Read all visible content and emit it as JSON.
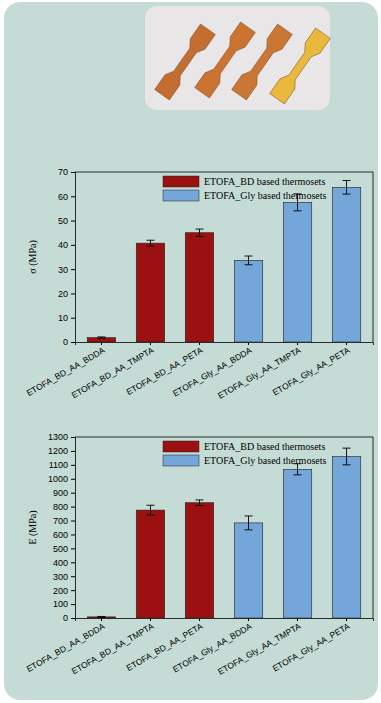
{
  "chart_data": [
    {
      "type": "bar",
      "y_label": "σ (MPa)",
      "categories": [
        "ETOFA_BD_AA_BDDA",
        "ETOFA_BD_AA_TMPTA",
        "ETOFA_BD_AA_PETA",
        "ETOFA_Gly_AA_BDDA",
        "ETOFA_Gly_AA_TMPTA",
        "ETOFA_Gly_AA_PETA"
      ],
      "series": [
        {
          "name": "ETOFA_BD based thermosets",
          "color": "#9b1010",
          "values": [
            1.8,
            40.7,
            45.0,
            null,
            null,
            null
          ],
          "errors": [
            0.3,
            1.2,
            1.5,
            null,
            null,
            null
          ]
        },
        {
          "name": "ETOFA_Gly based thermosets",
          "color": "#74a6d9",
          "values": [
            null,
            null,
            null,
            33.6,
            57.5,
            63.7
          ],
          "errors": [
            null,
            null,
            null,
            1.8,
            3.5,
            2.8
          ]
        }
      ],
      "ylim": [
        0,
        70
      ],
      "yticks": [
        0,
        10,
        20,
        30,
        40,
        50,
        60,
        70
      ],
      "legend": "upper right"
    },
    {
      "type": "bar",
      "y_label": "E (MPa)",
      "categories": [
        "ETOFA_BD_AA_BDDA",
        "ETOFA_BD_AA_TMPTA",
        "ETOFA_BD_AA_PETA",
        "ETOFA_Gly_AA_BDDA",
        "ETOFA_Gly_AA_TMPTA",
        "ETOFA_Gly_AA_PETA"
      ],
      "series": [
        {
          "name": "ETOFA_BD based thermosets",
          "color": "#9b1010",
          "values": [
            8,
            775,
            828,
            null,
            null,
            null
          ],
          "errors": [
            3,
            35,
            20,
            null,
            null,
            null
          ]
        },
        {
          "name": "ETOFA_Gly based thermosets",
          "color": "#74a6d9",
          "values": [
            null,
            null,
            null,
            683,
            1068,
            1160
          ],
          "errors": [
            null,
            null,
            null,
            50,
            40,
            60
          ]
        }
      ],
      "ylim": [
        0,
        1300
      ],
      "yticks": [
        0,
        100,
        200,
        300,
        400,
        500,
        600,
        700,
        800,
        900,
        1000,
        1100,
        1200,
        1300
      ],
      "legend": "upper right"
    }
  ]
}
